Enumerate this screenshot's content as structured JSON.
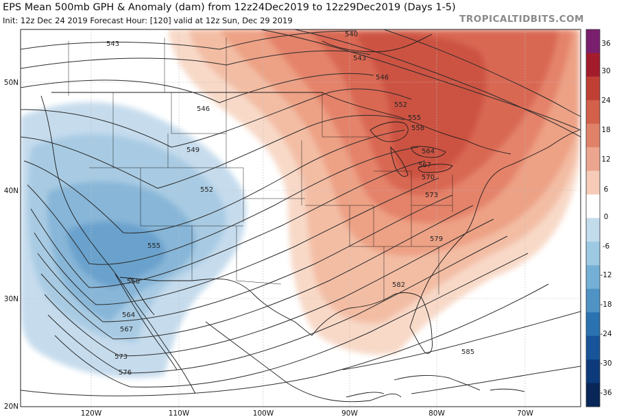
{
  "header": {
    "title": "EPS Mean 500mb GPH & Anomaly (dam) from 12z24Dec2019 to 12z29Dec2019 (Days 1-5)",
    "subtitle": "Init: 12z Dec 24 2019   Forecast Hour: [120]   valid at 12z Sun, Dec 29 2019",
    "credit": "TROPICALTIDBITS.COM"
  },
  "map": {
    "lat_labels": [
      "50N",
      "40N",
      "30N",
      "20N"
    ],
    "lon_labels": [
      "120W",
      "110W",
      "100W",
      "90W",
      "80W",
      "70W"
    ],
    "contour_labels": [
      "540",
      "543",
      "543",
      "546",
      "546",
      "549",
      "552",
      "552",
      "555",
      "555",
      "558",
      "558",
      "564",
      "564",
      "567",
      "567",
      "570",
      "573",
      "573",
      "576",
      "579",
      "582",
      "585"
    ]
  },
  "colorbar": {
    "ticks": [
      "36",
      "30",
      "24",
      "18",
      "12",
      "6",
      "0",
      "-6",
      "-12",
      "-18",
      "-24",
      "-30",
      "-36"
    ],
    "colors": [
      "#7a1f6e",
      "#a31c2c",
      "#bf3f35",
      "#d2604a",
      "#e0826a",
      "#eca68f",
      "#f6ccb8",
      "#ffffff",
      "#c3dcec",
      "#9dc9e2",
      "#74b0d6",
      "#4f93c5",
      "#2a72b0",
      "#17549a",
      "#0d3a7a",
      "#082657"
    ]
  }
}
